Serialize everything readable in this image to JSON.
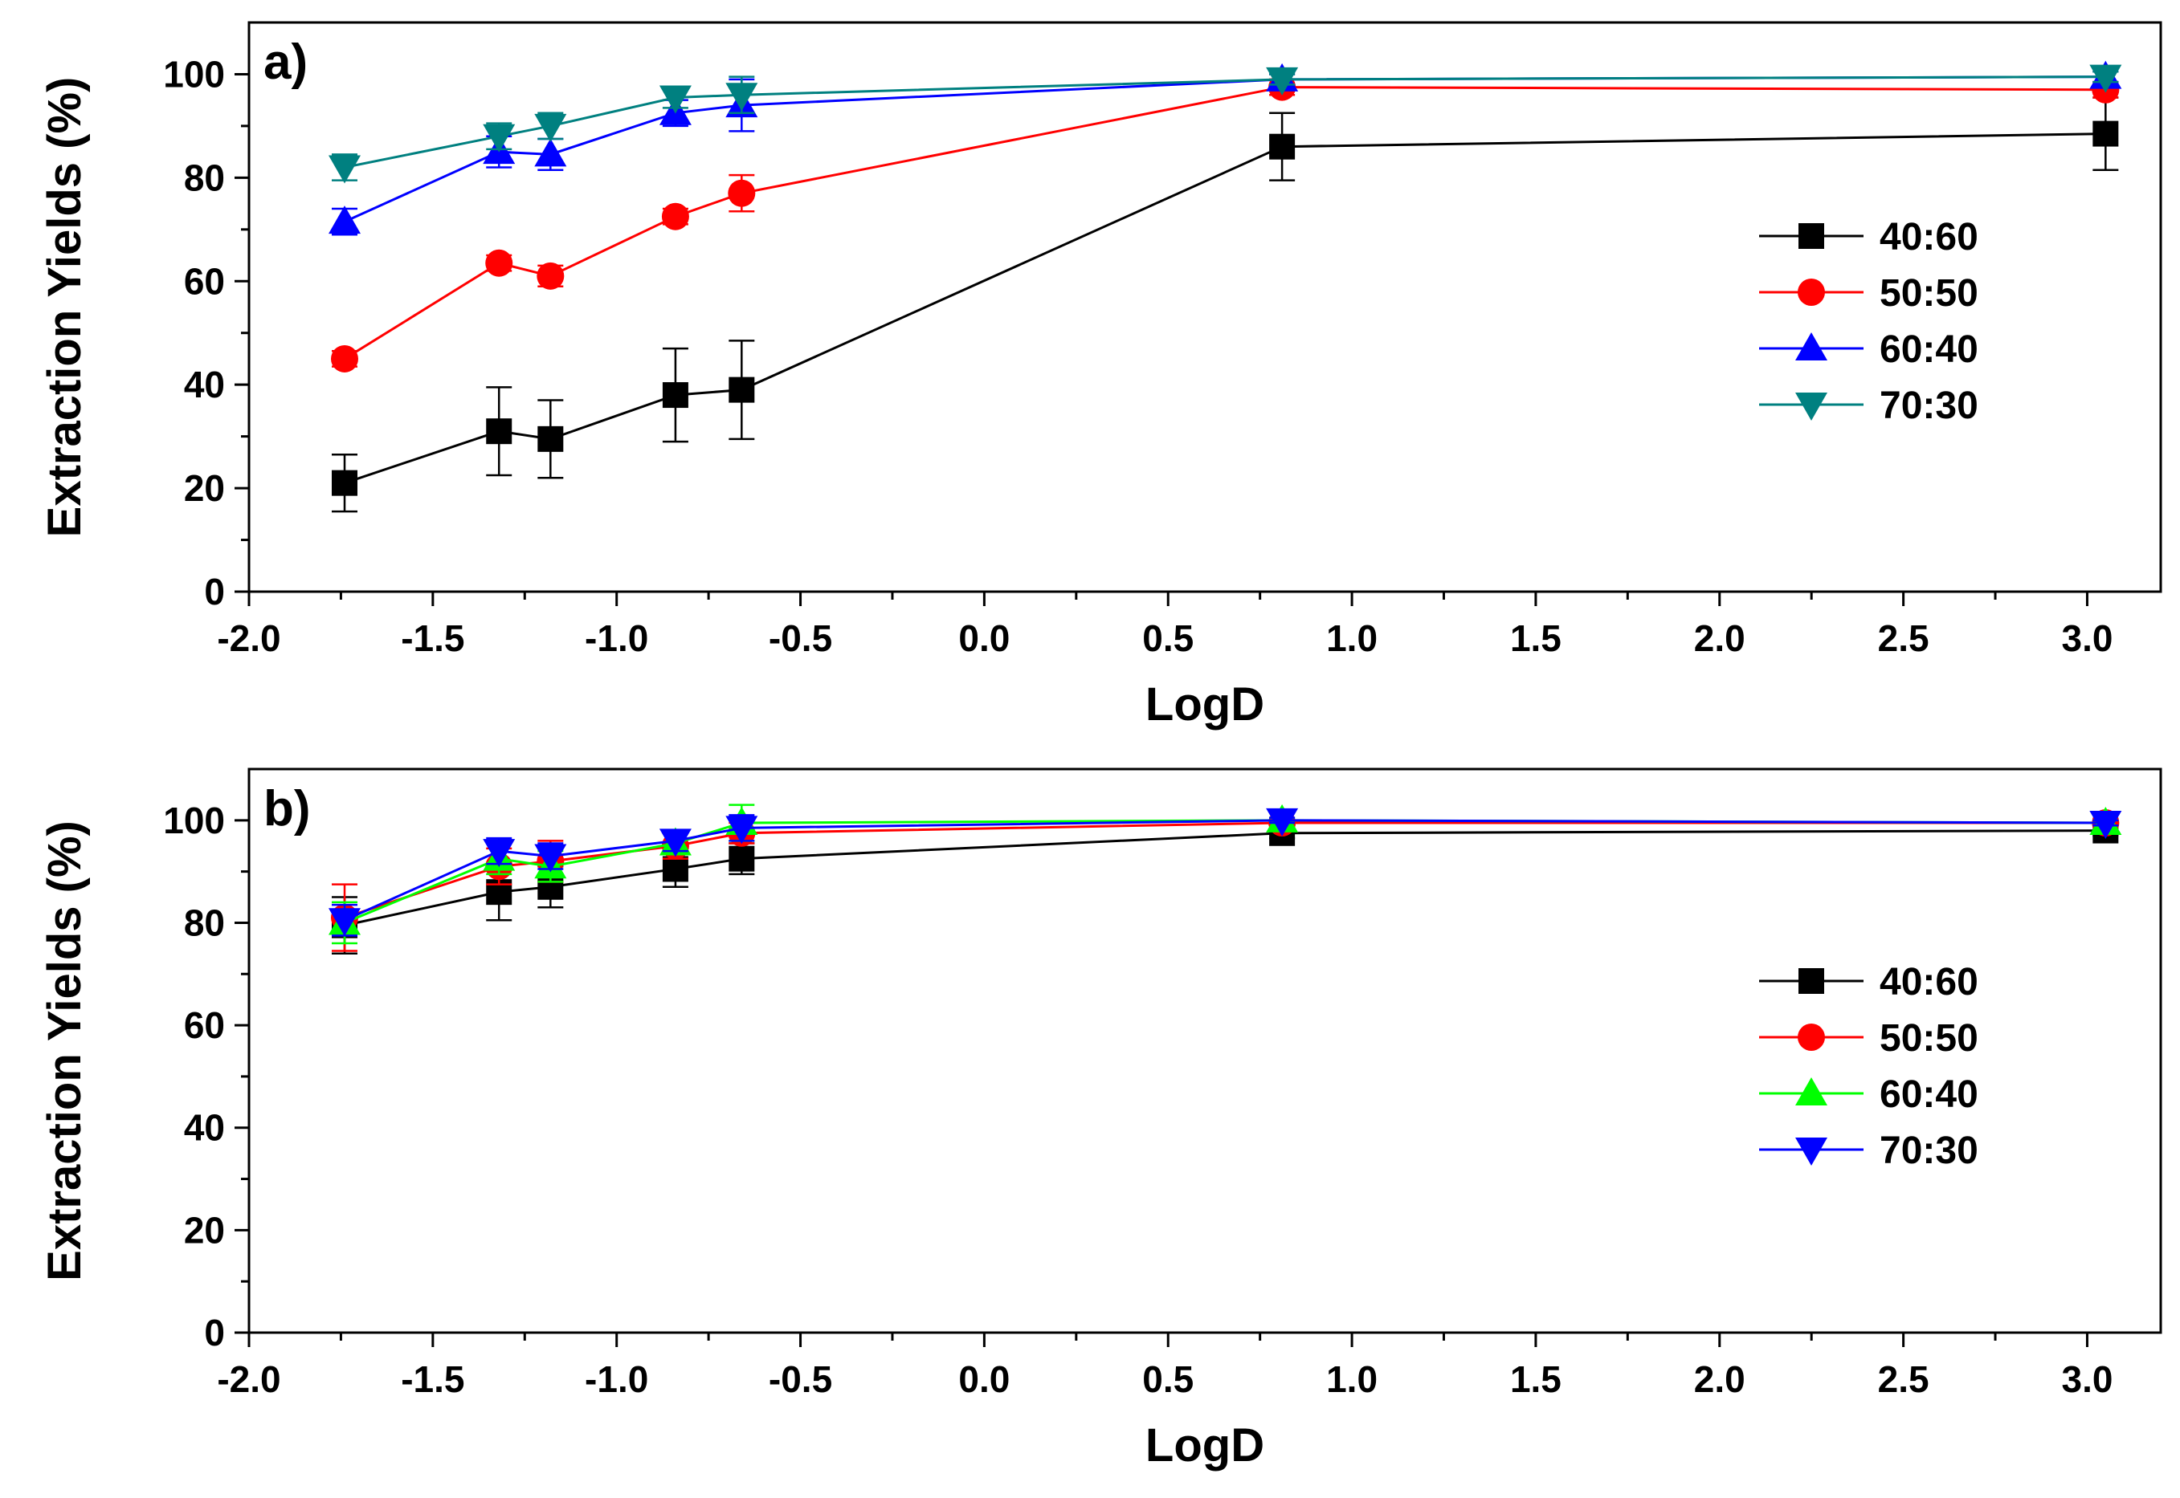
{
  "chart_data": [
    {
      "type": "line",
      "panel_label": "a)",
      "xlabel": "LogD",
      "ylabel": "Extraction Yields (%)",
      "xlim": [
        -2.0,
        3.2
      ],
      "ylim": [
        0,
        110
      ],
      "x_ticks": [
        "-2.0",
        "-1.5",
        "-1.0",
        "-0.5",
        "0.0",
        "0.5",
        "1.0",
        "1.5",
        "2.0",
        "2.5",
        "3.0"
      ],
      "y_ticks": [
        "0",
        "20",
        "40",
        "60",
        "80",
        "100"
      ],
      "x": [
        -1.74,
        -1.32,
        -1.18,
        -0.84,
        -0.66,
        0.81,
        3.05
      ],
      "legend_position": "right",
      "series": [
        {
          "name": "40:60",
          "color": "#000000",
          "marker": "square",
          "values": [
            21,
            31,
            29.5,
            38,
            39,
            86,
            88.5
          ],
          "errors": [
            5.5,
            8.5,
            7.5,
            9,
            9.5,
            6.5,
            7
          ]
        },
        {
          "name": "50:50",
          "color": "#ff0000",
          "marker": "circle",
          "values": [
            45,
            63.5,
            61,
            72.5,
            77,
            97.5,
            97
          ],
          "errors": [
            1.5,
            1.5,
            2,
            1.5,
            3.5,
            1.5,
            1.5
          ]
        },
        {
          "name": "60:40",
          "color": "#0000ff",
          "marker": "triangle-up",
          "values": [
            71.5,
            85,
            84.5,
            92.5,
            94,
            99,
            99.5
          ],
          "errors": [
            2.5,
            3,
            3,
            2.5,
            5,
            1,
            1
          ]
        },
        {
          "name": "70:30",
          "color": "#008080",
          "marker": "triangle-down",
          "values": [
            82,
            88,
            90,
            95.5,
            96,
            99,
            99.5
          ],
          "errors": [
            2.5,
            2.5,
            2.5,
            2,
            3.5,
            1,
            1
          ]
        }
      ]
    },
    {
      "type": "line",
      "panel_label": "b)",
      "xlabel": "LogD",
      "ylabel": "Extraction Yields (%)",
      "xlim": [
        -2.0,
        3.2
      ],
      "ylim": [
        0,
        110
      ],
      "x_ticks": [
        "-2.0",
        "-1.5",
        "-1.0",
        "-0.5",
        "0.0",
        "0.5",
        "1.0",
        "1.5",
        "2.0",
        "2.5",
        "3.0"
      ],
      "y_ticks": [
        "0",
        "20",
        "40",
        "60",
        "80",
        "100"
      ],
      "x": [
        -1.74,
        -1.32,
        -1.18,
        -0.84,
        -0.66,
        0.81,
        3.05
      ],
      "legend_position": "right",
      "series": [
        {
          "name": "40:60",
          "color": "#000000",
          "marker": "square",
          "values": [
            79.5,
            86,
            87,
            90.5,
            92.5,
            97.5,
            98
          ],
          "errors": [
            5.5,
            5.5,
            4,
            3.5,
            3,
            1,
            1
          ]
        },
        {
          "name": "50:50",
          "color": "#ff0000",
          "marker": "circle",
          "values": [
            81,
            91,
            92,
            95,
            97.5,
            99.5,
            99.5
          ],
          "errors": [
            6.5,
            3.5,
            4,
            2.5,
            2,
            0.5,
            0.5
          ]
        },
        {
          "name": "60:40",
          "color": "#00ff00",
          "marker": "triangle-up",
          "values": [
            80,
            92.5,
            91,
            95.5,
            99.5,
            100,
            99.5
          ],
          "errors": [
            4,
            3,
            3,
            2,
            3.5,
            0.5,
            0.5
          ]
        },
        {
          "name": "70:30",
          "color": "#0000ff",
          "marker": "triangle-down",
          "values": [
            80.5,
            94,
            93,
            96,
            98.5,
            100,
            99.5
          ],
          "errors": [
            3,
            2.5,
            2.5,
            2,
            2.5,
            0.5,
            0.5
          ]
        }
      ]
    }
  ]
}
